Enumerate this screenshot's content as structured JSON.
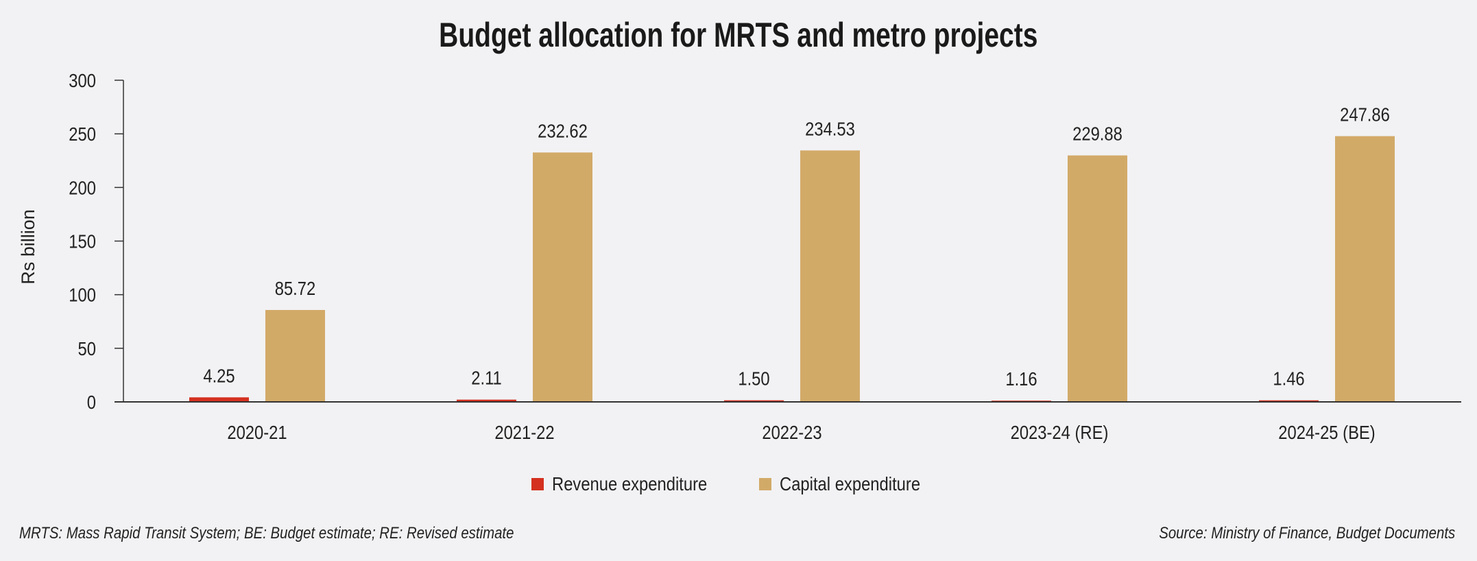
{
  "chart_data": {
    "type": "bar",
    "title": "Budget allocation for MRTS and metro projects",
    "ylabel": "Rs billion",
    "xlabel": "",
    "ylim": [
      0,
      300
    ],
    "yticks": [
      0,
      50,
      100,
      150,
      200,
      250,
      300
    ],
    "categories": [
      "2020-21",
      "2021-22",
      "2022-23",
      "2023-24 (RE)",
      "2024-25 (BE)"
    ],
    "series": [
      {
        "name": "Revenue expenditure",
        "color": "#d4301f",
        "values": [
          4.25,
          2.11,
          1.5,
          1.16,
          1.46
        ],
        "labels": [
          "4.25",
          "2.11",
          "1.50",
          "1.16",
          "1.46"
        ]
      },
      {
        "name": "Capital expenditure",
        "color": "#d2aa68",
        "values": [
          85.72,
          232.62,
          234.53,
          229.88,
          247.86
        ],
        "labels": [
          "85.72",
          "232.62",
          "234.53",
          "229.88",
          "247.86"
        ]
      }
    ],
    "grid": false,
    "legend_position": "bottom"
  },
  "footnote": "MRTS: Mass Rapid Transit System; BE: Budget estimate; RE: Revised estimate",
  "source": "Source: Ministry of Finance, Budget Documents"
}
